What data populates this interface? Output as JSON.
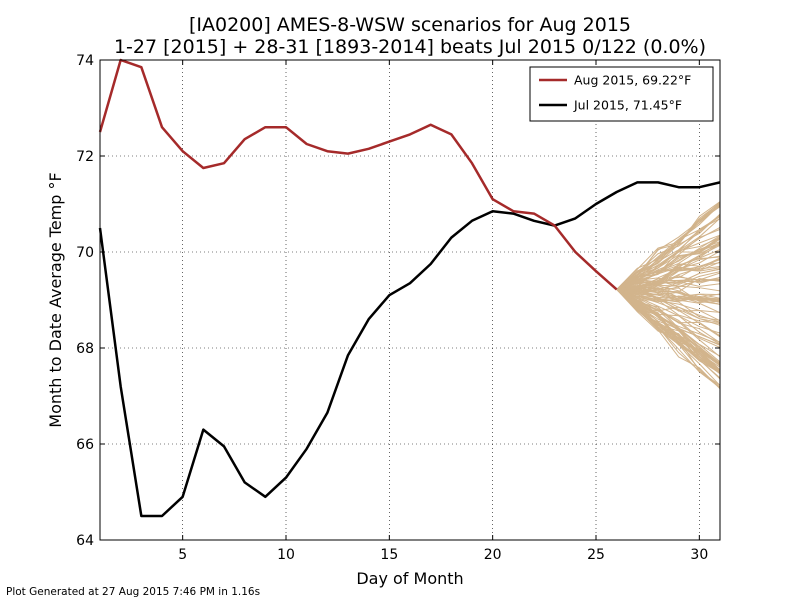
{
  "chart_data": {
    "type": "line",
    "title_line1": "[IA0200] AMES-8-WSW scenarios for Aug 2015",
    "title_line2": "1-27 [2015] + 28-31 [1893-2014] beats Jul 2015 0/122 (0.0%)",
    "xlabel": "Day of Month",
    "ylabel": "Month to Date Average Temp °F",
    "xlim": [
      1,
      31
    ],
    "ylim": [
      64,
      74
    ],
    "xticks": [
      5,
      10,
      15,
      20,
      25,
      30
    ],
    "yticks": [
      64,
      66,
      68,
      70,
      72,
      74
    ],
    "grid": true,
    "legend_position": "top-right",
    "series": [
      {
        "name": "Aug 2015, 69.22°F",
        "color": "#a52a2a",
        "x": [
          1,
          2,
          3,
          4,
          5,
          6,
          7,
          8,
          9,
          10,
          11,
          12,
          13,
          14,
          15,
          16,
          17,
          18,
          19,
          20,
          21,
          22,
          23,
          24,
          25,
          26
        ],
        "values": [
          72.5,
          74.0,
          73.85,
          72.6,
          72.1,
          71.75,
          71.85,
          72.35,
          72.6,
          72.6,
          72.25,
          72.1,
          72.05,
          72.15,
          72.3,
          72.45,
          72.65,
          72.45,
          71.85,
          71.1,
          70.85,
          70.8,
          70.55,
          70.0,
          69.6,
          69.22
        ]
      },
      {
        "name": "Jul 2015, 71.45°F",
        "color": "#000000",
        "x": [
          1,
          2,
          3,
          4,
          5,
          6,
          7,
          8,
          9,
          10,
          11,
          12,
          13,
          14,
          15,
          16,
          17,
          18,
          19,
          20,
          21,
          22,
          23,
          24,
          25,
          26,
          27,
          28,
          29,
          30,
          31
        ],
        "values": [
          70.5,
          67.2,
          64.5,
          64.5,
          64.9,
          66.3,
          65.95,
          65.2,
          64.9,
          65.3,
          65.9,
          66.65,
          67.85,
          68.6,
          69.1,
          69.35,
          69.75,
          70.3,
          70.65,
          70.85,
          70.8,
          70.65,
          70.55,
          70.7,
          71.0,
          71.25,
          71.45,
          71.45,
          71.35,
          71.35,
          71.45
        ]
      }
    ],
    "scenarios": {
      "color": "#d2b48c",
      "start_x": 26,
      "start_value": 69.22,
      "end_x": 31,
      "count": 122,
      "end_min": 67.15,
      "end_max": 71.15
    }
  },
  "footer": "Plot Generated at 27 Aug 2015 7:46 PM in 1.16s"
}
